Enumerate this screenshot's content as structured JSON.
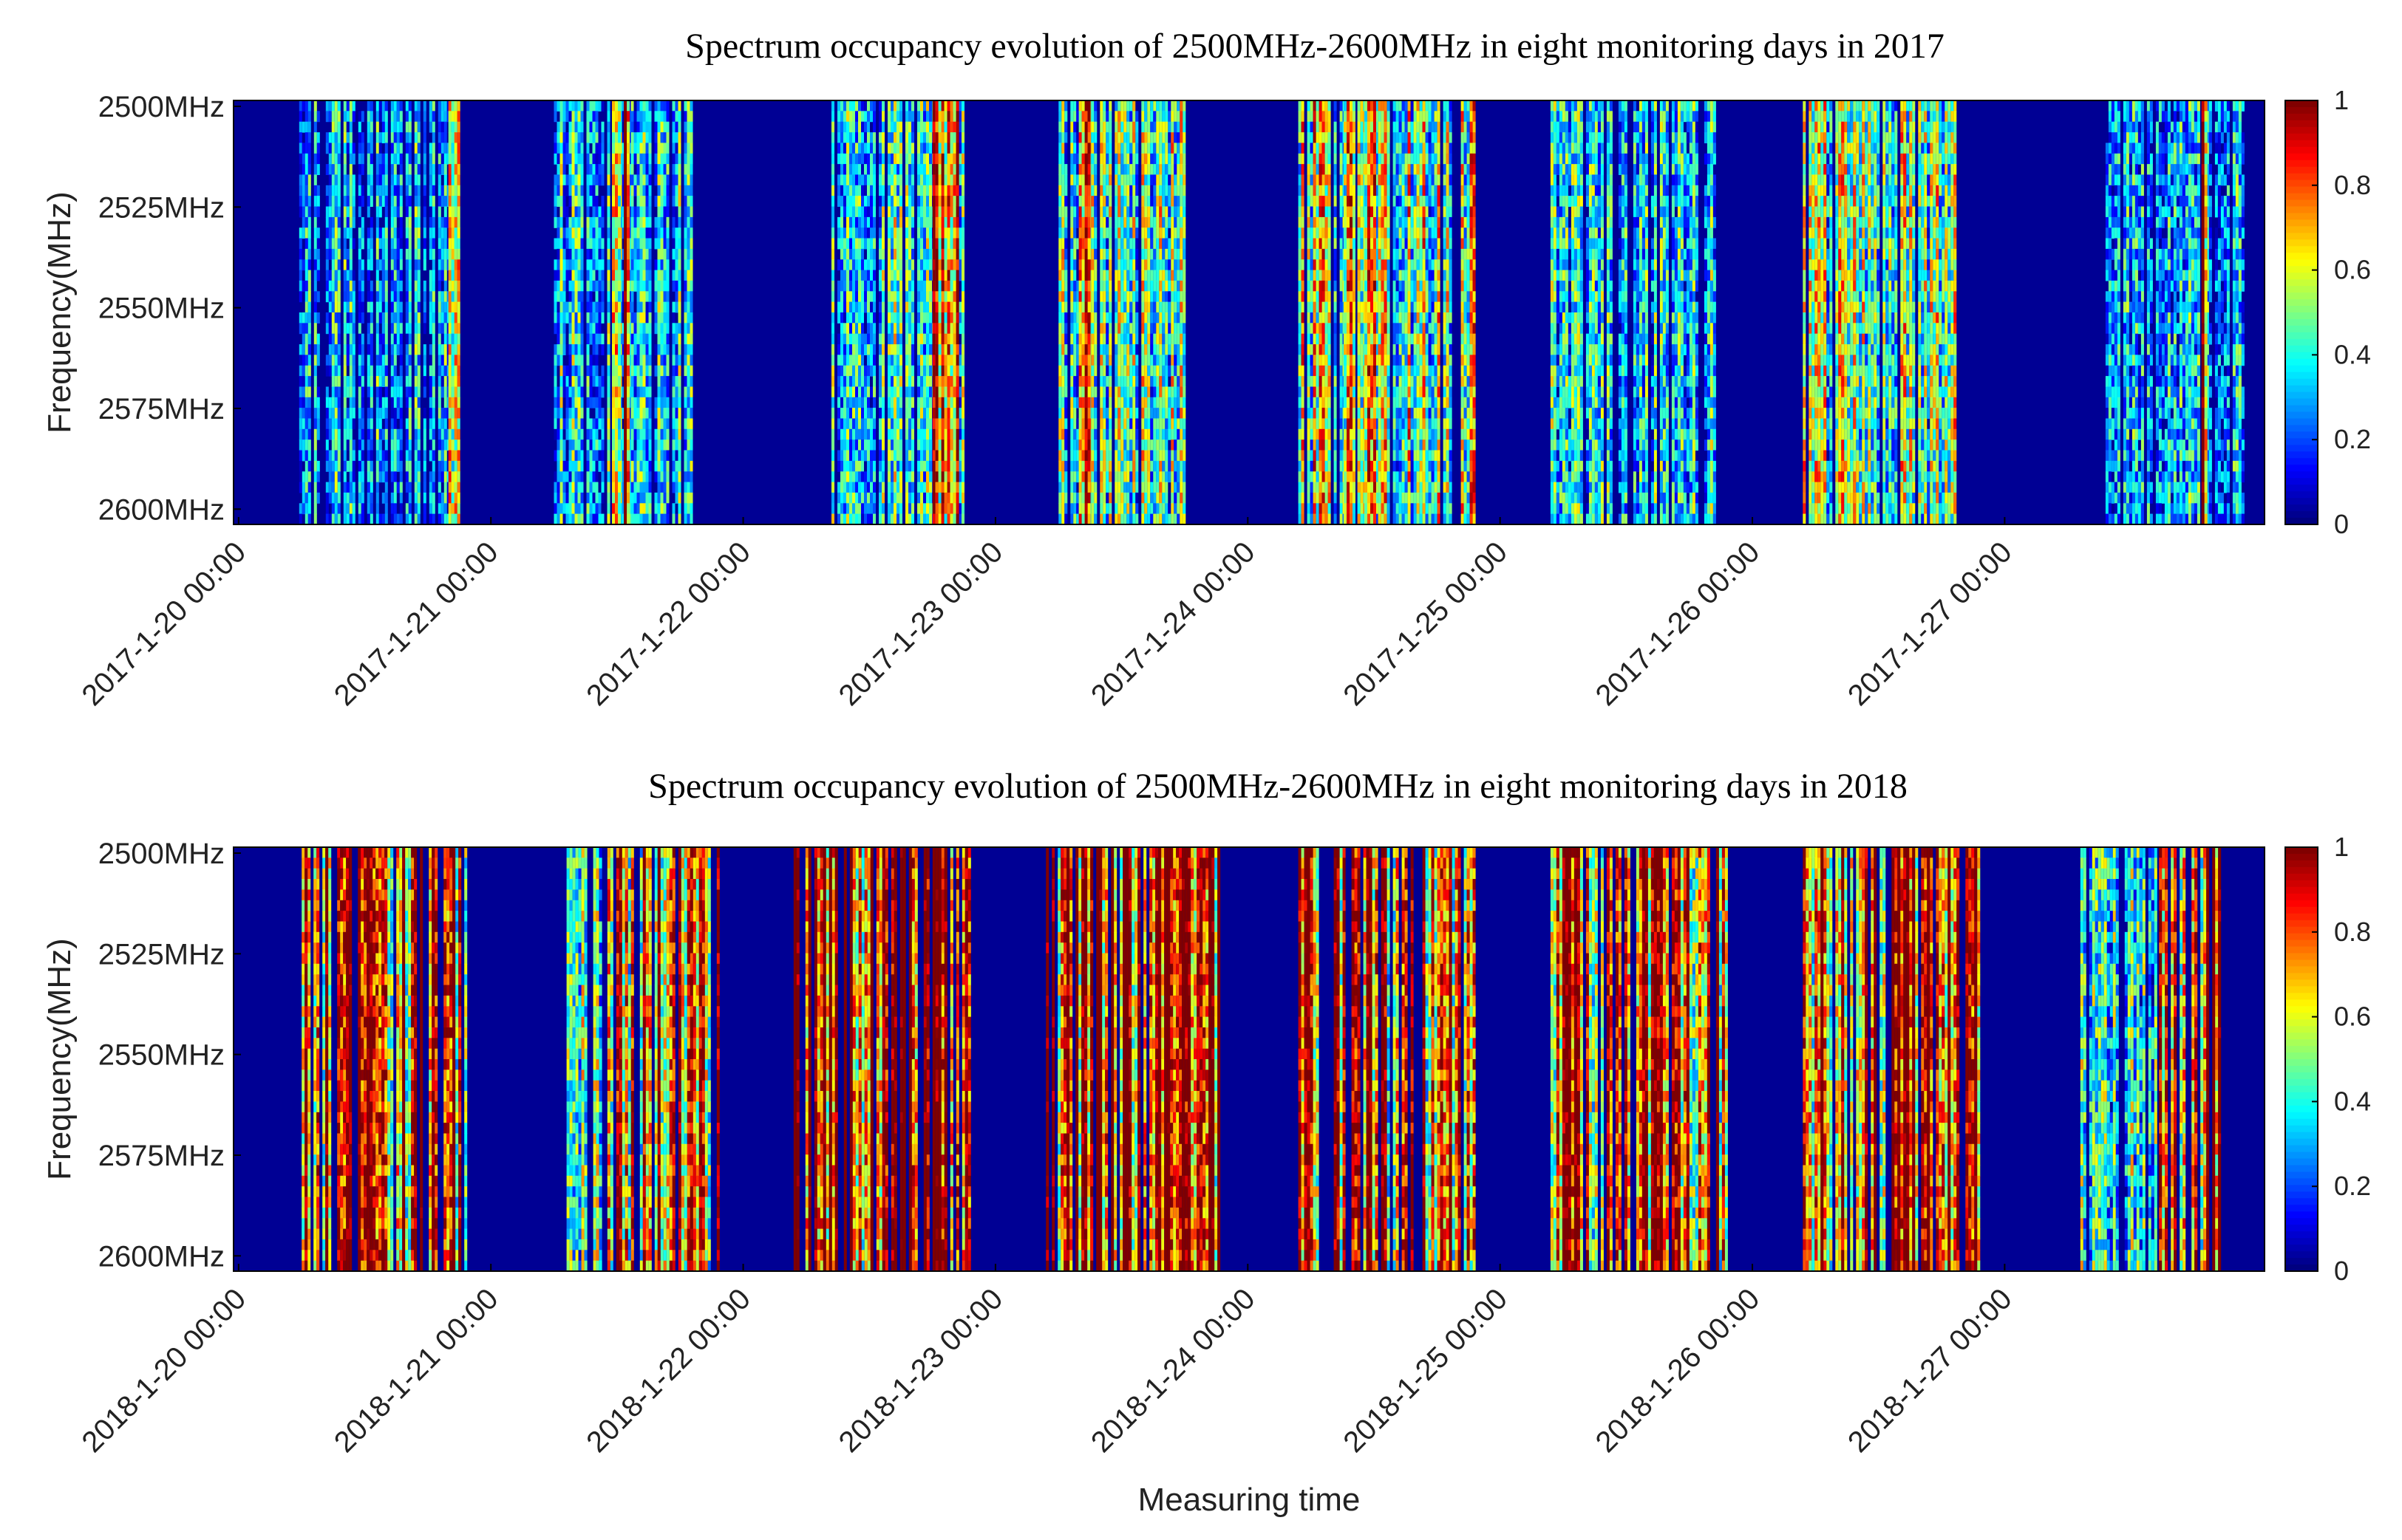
{
  "chart_data": [
    {
      "type": "heatmap",
      "title": "Spectrum occupancy evolution of 2500MHz-2600MHz in eight monitoring days in 2017",
      "ylabel": "Frequency(MHz)",
      "xlabel": "",
      "y_tick_labels": [
        "2500MHz",
        "2525MHz",
        "2550MHz",
        "2575MHz",
        "2600MHz"
      ],
      "x_tick_labels": [
        "2017-1-20 00:00",
        "2017-1-21 00:00",
        "2017-1-22 00:00",
        "2017-1-23 00:00",
        "2017-1-24 00:00",
        "2017-1-25 00:00",
        "2017-1-26 00:00",
        "2017-1-27 00:00"
      ],
      "x_range_days": [
        0,
        8
      ],
      "y_range_mhz": [
        2500,
        2600
      ],
      "colorbar_ticks": [
        "0",
        "0.2",
        "0.4",
        "0.6",
        "0.8",
        "1"
      ],
      "colorbar_range": [
        0,
        1
      ],
      "colormap": "jet",
      "occupancy_bands": [
        {
          "start": 0.24,
          "end": 0.86,
          "level": 0.3
        },
        {
          "start": 0.82,
          "end": 0.87,
          "level": 0.75
        },
        {
          "start": 1.25,
          "end": 1.8,
          "level": 0.35
        },
        {
          "start": 1.48,
          "end": 1.55,
          "level": 0.85
        },
        {
          "start": 2.35,
          "end": 2.9,
          "level": 0.4
        },
        {
          "start": 2.75,
          "end": 2.85,
          "level": 0.85
        },
        {
          "start": 3.25,
          "end": 3.75,
          "level": 0.45
        },
        {
          "start": 3.33,
          "end": 3.38,
          "level": 0.95
        },
        {
          "start": 4.2,
          "end": 4.9,
          "level": 0.55
        },
        {
          "start": 4.38,
          "end": 4.52,
          "level": 0.72
        },
        {
          "start": 5.2,
          "end": 5.85,
          "level": 0.35
        },
        {
          "start": 6.2,
          "end": 6.8,
          "level": 0.5
        },
        {
          "start": 7.4,
          "end": 7.95,
          "level": 0.3
        },
        {
          "start": 7.78,
          "end": 7.8,
          "level": 0.95
        }
      ]
    },
    {
      "type": "heatmap",
      "title": "Spectrum occupancy evolution of 2500MHz-2600MHz in eight monitoring days in 2018",
      "ylabel": "Frequency(MHz)",
      "xlabel": "Measuring time",
      "y_tick_labels": [
        "2500MHz",
        "2525MHz",
        "2550MHz",
        "2575MHz",
        "2600MHz"
      ],
      "x_tick_labels": [
        "2018-1-20 00:00",
        "2018-1-21 00:00",
        "2018-1-22 00:00",
        "2018-1-23 00:00",
        "2018-1-24 00:00",
        "2018-1-25 00:00",
        "2018-1-26 00:00",
        "2018-1-27 00:00"
      ],
      "x_range_days": [
        0,
        8
      ],
      "y_range_mhz": [
        2500,
        2600
      ],
      "colorbar_ticks": [
        "0",
        "0.2",
        "0.4",
        "0.6",
        "0.8",
        "1"
      ],
      "colorbar_range": [
        0,
        1
      ],
      "colormap": "jet",
      "occupancy_bands": [
        {
          "start": 0.25,
          "end": 0.9,
          "level": 0.85
        },
        {
          "start": 1.3,
          "end": 1.45,
          "level": 0.55
        },
        {
          "start": 1.45,
          "end": 1.9,
          "level": 0.8
        },
        {
          "start": 2.2,
          "end": 2.9,
          "level": 0.97
        },
        {
          "start": 3.2,
          "end": 3.9,
          "level": 0.97
        },
        {
          "start": 4.2,
          "end": 4.9,
          "level": 0.8
        },
        {
          "start": 5.2,
          "end": 5.9,
          "level": 0.85
        },
        {
          "start": 6.2,
          "end": 6.9,
          "level": 0.85
        },
        {
          "start": 7.3,
          "end": 7.6,
          "level": 0.4
        },
        {
          "start": 7.6,
          "end": 7.85,
          "level": 0.92
        }
      ]
    }
  ]
}
